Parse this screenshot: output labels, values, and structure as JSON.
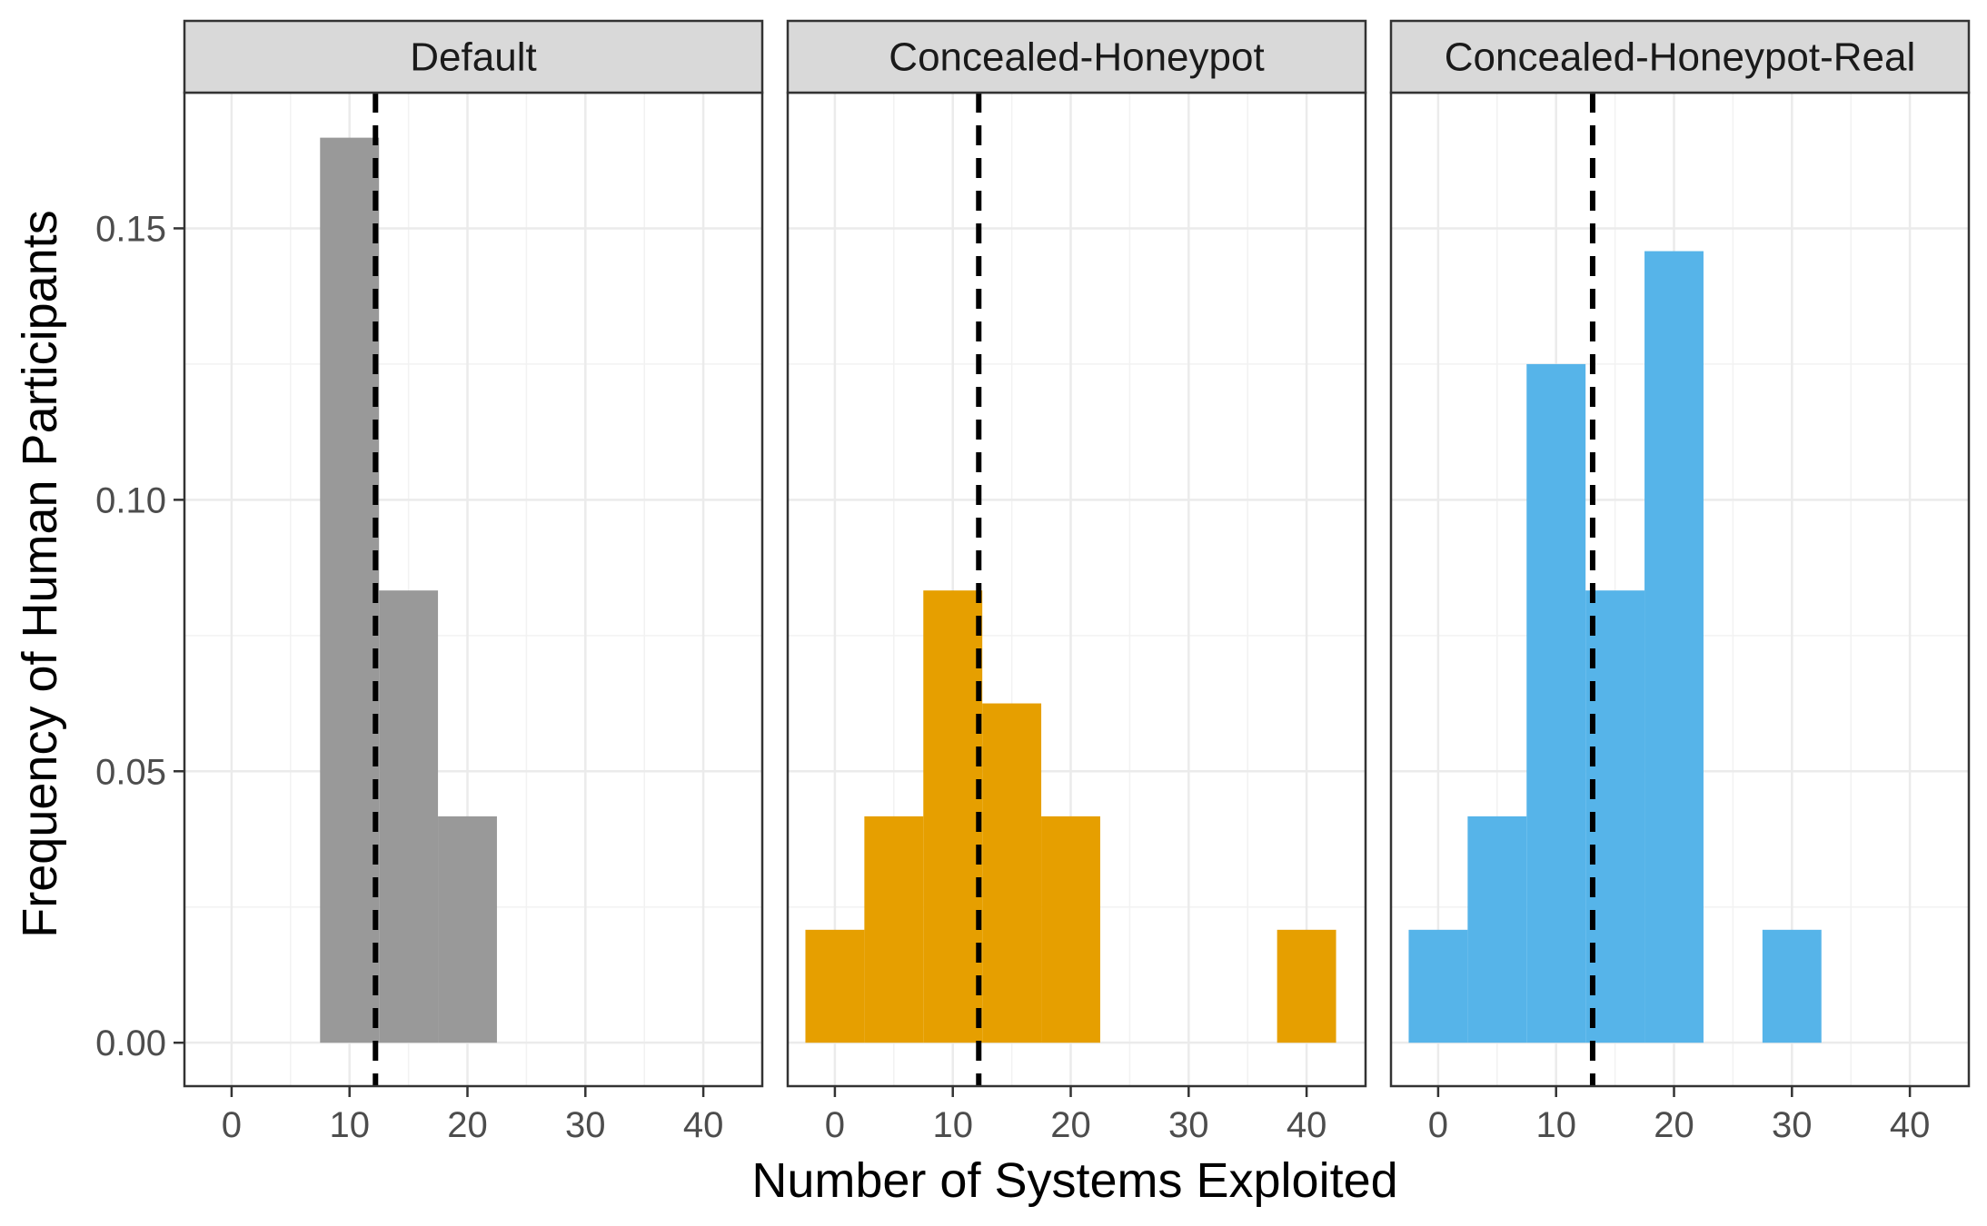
{
  "chart_data": {
    "type": "bar",
    "subtype": "faceted-histogram",
    "xlabel": "Number of Systems Exploited",
    "ylabel": "Frequency of Human Participants",
    "xlim": [
      -4,
      45
    ],
    "ylim": [
      -0.008,
      0.175
    ],
    "x_ticks": [
      0,
      10,
      20,
      30,
      40
    ],
    "x_tick_labels": [
      "0",
      "10",
      "20",
      "30",
      "40"
    ],
    "y_ticks": [
      0.0,
      0.05,
      0.1,
      0.15
    ],
    "y_tick_labels": [
      "0.00",
      "0.05",
      "0.10",
      "0.15"
    ],
    "bin_width": 5,
    "grid": true,
    "legend": "none",
    "mean_line_style": "dashed",
    "panels": [
      {
        "name": "Default",
        "color": "#999999",
        "mean": 12.2,
        "bins": [
          {
            "x": 10,
            "value": 0.1667
          },
          {
            "x": 15,
            "value": 0.0833
          },
          {
            "x": 20,
            "value": 0.0417
          }
        ]
      },
      {
        "name": "Concealed-Honeypot",
        "color": "#E69F00",
        "mean": 12.2,
        "bins": [
          {
            "x": 0,
            "value": 0.0208
          },
          {
            "x": 5,
            "value": 0.0417
          },
          {
            "x": 10,
            "value": 0.0833
          },
          {
            "x": 15,
            "value": 0.0625
          },
          {
            "x": 20,
            "value": 0.0417
          },
          {
            "x": 40,
            "value": 0.0208
          }
        ]
      },
      {
        "name": "Concealed-Honeypot-Real",
        "color": "#56B4E9",
        "mean": 13.1,
        "bins": [
          {
            "x": 0,
            "value": 0.0208
          },
          {
            "x": 5,
            "value": 0.0417
          },
          {
            "x": 10,
            "value": 0.125
          },
          {
            "x": 15,
            "value": 0.0833
          },
          {
            "x": 20,
            "value": 0.1458
          },
          {
            "x": 30,
            "value": 0.0208
          }
        ]
      }
    ]
  }
}
